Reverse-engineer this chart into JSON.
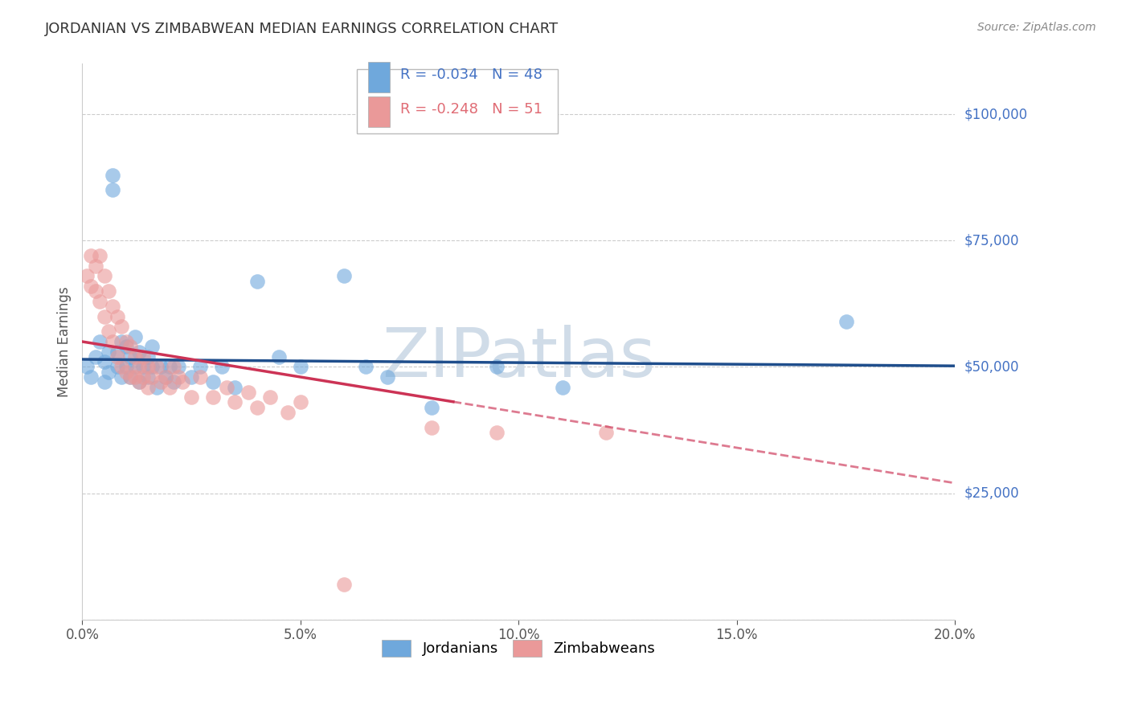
{
  "title": "JORDANIAN VS ZIMBABWEAN MEDIAN EARNINGS CORRELATION CHART",
  "source": "Source: ZipAtlas.com",
  "ylabel": "Median Earnings",
  "xlim": [
    0.0,
    0.2
  ],
  "ylim": [
    0,
    110000
  ],
  "yticks": [
    0,
    25000,
    50000,
    75000,
    100000
  ],
  "ytick_labels": [
    "",
    "$25,000",
    "$50,000",
    "$75,000",
    "$100,000"
  ],
  "xticks": [
    0.0,
    0.05,
    0.1,
    0.15,
    0.2
  ],
  "xtick_labels": [
    "0.0%",
    "5.0%",
    "10.0%",
    "15.0%",
    "20.0%"
  ],
  "blue_color": "#6fa8dc",
  "pink_color": "#ea9999",
  "blue_line_color": "#1f4e8c",
  "pink_line_color": "#cc3355",
  "watermark": "ZIPatlas",
  "watermark_color": "#d0dce8",
  "legend_R_blue": "R = -0.034",
  "legend_N_blue": "N = 48",
  "legend_R_pink": "R = -0.248",
  "legend_N_pink": "N = 51",
  "blue_label_color": "#4472c4",
  "jordanians_x": [
    0.001,
    0.002,
    0.003,
    0.004,
    0.005,
    0.005,
    0.006,
    0.006,
    0.007,
    0.007,
    0.008,
    0.008,
    0.009,
    0.009,
    0.01,
    0.01,
    0.011,
    0.011,
    0.012,
    0.012,
    0.013,
    0.013,
    0.014,
    0.015,
    0.015,
    0.016,
    0.016,
    0.017,
    0.018,
    0.019,
    0.02,
    0.021,
    0.022,
    0.025,
    0.027,
    0.03,
    0.032,
    0.035,
    0.04,
    0.045,
    0.05,
    0.06,
    0.065,
    0.07,
    0.08,
    0.095,
    0.11,
    0.175
  ],
  "jordanians_y": [
    50000,
    48000,
    52000,
    55000,
    51000,
    47000,
    53000,
    49000,
    85000,
    88000,
    50000,
    53000,
    48000,
    55000,
    50000,
    54000,
    52000,
    48000,
    56000,
    50000,
    47000,
    53000,
    50000,
    52000,
    48000,
    54000,
    50000,
    46000,
    50000,
    48000,
    50000,
    47000,
    50000,
    48000,
    50000,
    47000,
    50000,
    46000,
    67000,
    52000,
    50000,
    68000,
    50000,
    48000,
    42000,
    50000,
    46000,
    59000
  ],
  "zimbabweans_x": [
    0.001,
    0.002,
    0.002,
    0.003,
    0.003,
    0.004,
    0.004,
    0.005,
    0.005,
    0.006,
    0.006,
    0.007,
    0.007,
    0.008,
    0.008,
    0.009,
    0.009,
    0.01,
    0.01,
    0.011,
    0.011,
    0.012,
    0.012,
    0.013,
    0.013,
    0.014,
    0.014,
    0.015,
    0.015,
    0.016,
    0.017,
    0.018,
    0.019,
    0.02,
    0.021,
    0.022,
    0.023,
    0.025,
    0.027,
    0.03,
    0.033,
    0.035,
    0.038,
    0.04,
    0.043,
    0.047,
    0.05,
    0.06,
    0.08,
    0.095,
    0.12
  ],
  "zimbabweans_y": [
    68000,
    72000,
    66000,
    70000,
    65000,
    72000,
    63000,
    68000,
    60000,
    65000,
    57000,
    62000,
    55000,
    60000,
    52000,
    58000,
    50000,
    55000,
    49000,
    54000,
    48000,
    52000,
    48000,
    50000,
    47000,
    52000,
    48000,
    50000,
    46000,
    48000,
    50000,
    47000,
    48000,
    46000,
    50000,
    48000,
    47000,
    44000,
    48000,
    44000,
    46000,
    43000,
    45000,
    42000,
    44000,
    41000,
    43000,
    7000,
    38000,
    37000,
    37000
  ]
}
